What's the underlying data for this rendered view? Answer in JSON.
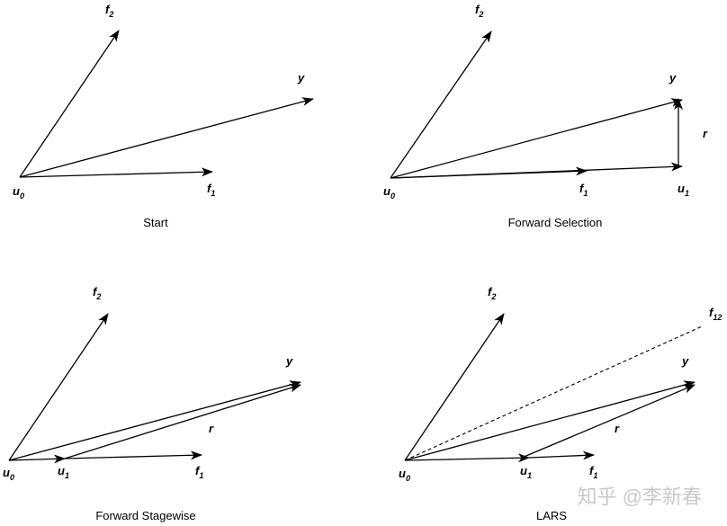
{
  "panels": {
    "start": {
      "caption": "Start",
      "labels": {
        "u0": [
          "u",
          "0"
        ],
        "f1": [
          "f",
          "1"
        ],
        "f2": [
          "f",
          "2"
        ],
        "y": [
          "y",
          ""
        ]
      }
    },
    "forward_selection": {
      "caption": "Forward Selection",
      "labels": {
        "u0": [
          "u",
          "0"
        ],
        "u1": [
          "u",
          "1"
        ],
        "f1": [
          "f",
          "1"
        ],
        "f2": [
          "f",
          "2"
        ],
        "y": [
          "y",
          ""
        ],
        "r": [
          "r",
          ""
        ]
      }
    },
    "forward_stagewise": {
      "caption": "Forward Stagewise",
      "labels": {
        "u0": [
          "u",
          "0"
        ],
        "u1": [
          "u",
          "1"
        ],
        "f1": [
          "f",
          "1"
        ],
        "f2": [
          "f",
          "2"
        ],
        "y": [
          "y",
          ""
        ],
        "r": [
          "r",
          ""
        ]
      }
    },
    "lars": {
      "caption": "LARS",
      "labels": {
        "u0": [
          "u",
          "0"
        ],
        "u1": [
          "u",
          "1"
        ],
        "f1": [
          "f",
          "1"
        ],
        "f2": [
          "f",
          "2"
        ],
        "f12": [
          "f",
          "12"
        ],
        "y": [
          "y",
          ""
        ],
        "r": [
          "r",
          ""
        ]
      }
    }
  },
  "watermark": "知乎 @李新春"
}
